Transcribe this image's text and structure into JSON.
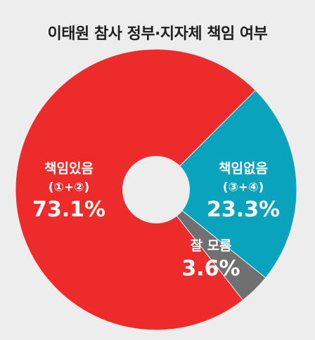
{
  "chart_data": {
    "type": "pie",
    "title": "이태원 참사 정부·지자체 책임 여부",
    "slices": [
      {
        "label": "책임있음",
        "sublabel": "(①+②)",
        "value": 73.1,
        "value_label": "73.1%",
        "color": "#ee2b2b"
      },
      {
        "label": "책임없음",
        "sublabel": "(③+④)",
        "value": 23.3,
        "value_label": "23.3%",
        "color": "#0aa3bd"
      },
      {
        "label": "잘 모름",
        "sublabel": "",
        "value": 3.6,
        "value_label": "3.6%",
        "color": "#707070"
      }
    ],
    "donut_hole": true,
    "legend": "none"
  }
}
